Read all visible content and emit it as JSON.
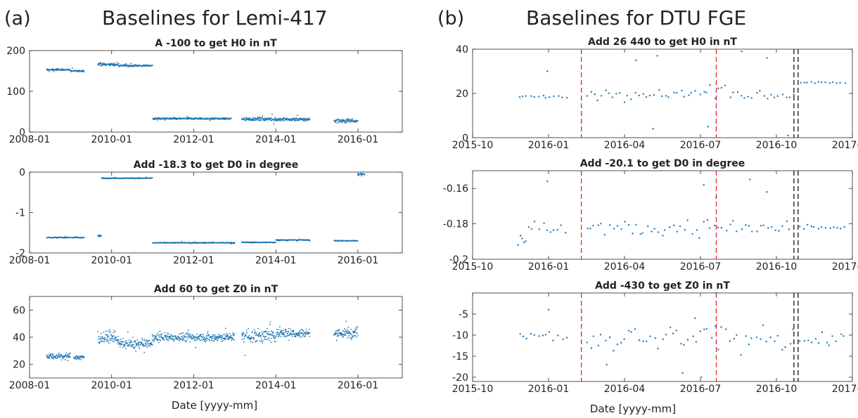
{
  "colors": {
    "series": "#1f77b4",
    "red_line": "#e8222a",
    "black_line": "#111111",
    "axis": "#262626"
  },
  "left": {
    "tag": "(a)",
    "title": "Baselines for Lemi-417",
    "xlabel": "Date [yyyy-mm]",
    "xticks": [
      "2008-01",
      "2010-01",
      "2012-01",
      "2014-01",
      "2016-01"
    ]
  },
  "right": {
    "tag": "(b)",
    "title": "Baselines for DTU FGE",
    "xlabel": "Date [yyyy-mm]",
    "xticks": [
      "2015-10",
      "2016-01",
      "2016-04",
      "2016-07",
      "2016-10",
      "2017-01"
    ]
  },
  "chart_data": [
    {
      "type": "scatter",
      "title": "A -100 to get H0 in nT",
      "xlabel": "",
      "ylabel": "",
      "x_type": "date",
      "xlim": [
        "2008-01",
        "2011-01"
      ],
      "xticks": [
        "2008-01",
        "2010-01",
        "2012-01",
        "2014-01",
        "2016-01"
      ],
      "ylim": [
        0,
        200
      ],
      "yticks": [
        "0",
        "100",
        "200"
      ],
      "grid": false,
      "segments": [
        {
          "start": "2008-06",
          "end": "2009-01",
          "y": 153,
          "noise": 2
        },
        {
          "start": "2009-01",
          "end": "2009-05",
          "y": 150,
          "noise": 2
        },
        {
          "start": "2009-09",
          "end": "2010-03",
          "y": 166,
          "noise": 3
        },
        {
          "start": "2010-03",
          "end": "2011-01",
          "y": 163,
          "noise": 2
        },
        {
          "start": "2011-01",
          "end": "2012-12",
          "y": 33,
          "noise": 2
        },
        {
          "start": "2013-03",
          "end": "2014-01",
          "y": 32,
          "noise": 4
        },
        {
          "start": "2014-01",
          "end": "2014-11",
          "y": 31,
          "noise": 4
        },
        {
          "start": "2015-06",
          "end": "2016-01",
          "y": 28,
          "noise": 5
        }
      ]
    },
    {
      "type": "scatter",
      "title": "Add -18.3 to get D0 in degree",
      "xlabel": "",
      "ylabel": "",
      "x_type": "date",
      "xlim": [
        "2008-01",
        "2017-01"
      ],
      "xticks": [
        "2008-01",
        "2010-01",
        "2012-01",
        "2014-01",
        "2016-01"
      ],
      "ylim": [
        -2,
        0
      ],
      "yticks": [
        "-2",
        "-1",
        "0"
      ],
      "grid": false,
      "segments": [
        {
          "start": "2008-06",
          "end": "2009-05",
          "y": -1.62,
          "noise": 0.01
        },
        {
          "start": "2009-09",
          "end": "2009-10",
          "y": -1.58,
          "noise": 0.02
        },
        {
          "start": "2009-10",
          "end": "2011-01",
          "y": -0.15,
          "noise": 0.01
        },
        {
          "start": "2011-01",
          "end": "2013-01",
          "y": -1.75,
          "noise": 0.01
        },
        {
          "start": "2013-03",
          "end": "2014-01",
          "y": -1.74,
          "noise": 0.01
        },
        {
          "start": "2014-01",
          "end": "2014-11",
          "y": -1.68,
          "noise": 0.01
        },
        {
          "start": "2015-06",
          "end": "2016-01",
          "y": -1.7,
          "noise": 0.01
        },
        {
          "start": "2016-01",
          "end": "2016-03",
          "y": -0.05,
          "noise": 0.03
        }
      ]
    },
    {
      "type": "scatter",
      "title": "Add 60 to get Z0 in nT",
      "xlabel": "Date [yyyy-mm]",
      "ylabel": "",
      "x_type": "date",
      "xlim": [
        "2008-01",
        "2017-01"
      ],
      "xticks": [
        "2008-01",
        "2010-01",
        "2012-01",
        "2014-01",
        "2016-01"
      ],
      "ylim": [
        10,
        70
      ],
      "yticks": [
        "20",
        "40",
        "60"
      ],
      "grid": false,
      "segments": [
        {
          "start": "2008-06",
          "end": "2009-01",
          "y": 26,
          "noise": 2
        },
        {
          "start": "2009-02",
          "end": "2009-05",
          "y": 25,
          "noise": 2
        },
        {
          "start": "2009-09",
          "end": "2010-03",
          "y": 40,
          "noise": 4
        },
        {
          "start": "2010-03",
          "end": "2011-01",
          "y": 35,
          "noise": 3
        },
        {
          "start": "2011-01",
          "end": "2013-01",
          "y": 40,
          "noise": 3
        },
        {
          "start": "2013-03",
          "end": "2014-01",
          "y": 41,
          "noise": 5
        },
        {
          "start": "2014-01",
          "end": "2014-11",
          "y": 43,
          "noise": 3
        },
        {
          "start": "2015-06",
          "end": "2016-01",
          "y": 43,
          "noise": 4
        }
      ]
    },
    {
      "type": "scatter",
      "title": "Add 26 440 to get H0 in nT",
      "xlabel": "",
      "ylabel": "",
      "x_type": "date",
      "xlim": [
        "2015-10",
        "2017-01"
      ],
      "xticks": [
        "2015-10",
        "2016-01",
        "2016-04",
        "2016-07",
        "2016-10",
        "2017-01"
      ],
      "ylim": [
        0,
        40
      ],
      "yticks": [
        "0",
        "20",
        "40"
      ],
      "grid": false,
      "vlines": [
        {
          "x": "2016-02-10",
          "color": "red"
        },
        {
          "x": "2016-07-20",
          "color": "red"
        },
        {
          "x": "2016-10-22",
          "color": "black"
        },
        {
          "x": "2016-10-27",
          "color": "black"
        }
      ],
      "segments": [
        {
          "start": "2015-11-25",
          "end": "2016-01-25",
          "y": 18.5,
          "noise": 0.6
        },
        {
          "start": "2016-02-15",
          "end": "2016-10-25",
          "y": 20,
          "noise": 2.5
        },
        {
          "start": "2016-10-28",
          "end": "2016-12-25",
          "y": 25,
          "noise": 0.4
        }
      ],
      "outliers": [
        [
          "2015-12-30",
          30
        ],
        [
          "2016-04-15",
          35
        ],
        [
          "2016-05-10",
          37
        ],
        [
          "2016-08-20",
          39
        ],
        [
          "2016-09-20",
          36
        ],
        [
          "2016-07-10",
          5
        ],
        [
          "2016-10-15",
          1
        ],
        [
          "2016-05-05",
          4
        ]
      ]
    },
    {
      "type": "scatter",
      "title": "Add -20.1 to get D0 in degree",
      "xlabel": "",
      "ylabel": "",
      "x_type": "date",
      "xlim": [
        "2015-10",
        "2017-01"
      ],
      "xticks": [
        "2015-10",
        "2016-01",
        "2016-04",
        "2016-07",
        "2016-10",
        "2017-01"
      ],
      "ylim": [
        -0.2,
        -0.15
      ],
      "yticks": [
        "-0.2",
        "-0.18",
        "-0.16"
      ],
      "grid": false,
      "vlines": [
        {
          "x": "2016-02-10",
          "color": "red"
        },
        {
          "x": "2016-07-20",
          "color": "red"
        },
        {
          "x": "2016-10-22",
          "color": "black"
        },
        {
          "x": "2016-10-27",
          "color": "black"
        }
      ],
      "segments": [
        {
          "start": "2015-11-25",
          "end": "2015-12-05",
          "y": -0.19,
          "noise": 0.004
        },
        {
          "start": "2015-12-05",
          "end": "2016-01-25",
          "y": -0.182,
          "noise": 0.004
        },
        {
          "start": "2016-02-15",
          "end": "2016-10-25",
          "y": -0.182,
          "noise": 0.004
        },
        {
          "start": "2016-10-28",
          "end": "2016-12-25",
          "y": -0.182,
          "noise": 0.002
        }
      ],
      "outliers": [
        [
          "2015-12-30",
          -0.156
        ],
        [
          "2016-07-20",
          -0.165
        ],
        [
          "2016-08-30",
          -0.155
        ],
        [
          "2016-09-20",
          -0.162
        ],
        [
          "2016-07-05",
          -0.158
        ]
      ]
    },
    {
      "type": "scatter",
      "title": "Add -430 to get Z0 in nT",
      "xlabel": "Date [yyyy-mm]",
      "ylabel": "",
      "x_type": "date",
      "xlim": [
        "2015-10",
        "2017-01"
      ],
      "xticks": [
        "2015-10",
        "2016-01",
        "2016-04",
        "2016-07",
        "2016-10",
        "2017-01"
      ],
      "ylim": [
        -21,
        0
      ],
      "yticks": [
        "-20",
        "-15",
        "-10",
        "-5"
      ],
      "grid": false,
      "vlines": [
        {
          "x": "2016-02-10",
          "color": "red"
        },
        {
          "x": "2016-07-20",
          "color": "red"
        },
        {
          "x": "2016-10-22",
          "color": "black"
        },
        {
          "x": "2016-10-27",
          "color": "black"
        }
      ],
      "segments": [
        {
          "start": "2015-11-25",
          "end": "2016-01-25",
          "y": -10.5,
          "noise": 1
        },
        {
          "start": "2016-02-15",
          "end": "2016-10-25",
          "y": -11,
          "noise": 3
        },
        {
          "start": "2016-10-28",
          "end": "2016-12-25",
          "y": -11,
          "noise": 1.5
        }
      ],
      "outliers": [
        [
          "2016-01-01",
          -4
        ],
        [
          "2016-03-10",
          -17
        ],
        [
          "2016-06-25",
          -6
        ],
        [
          "2016-07-20",
          0
        ],
        [
          "2016-07-02",
          -20
        ],
        [
          "2016-06-10",
          -19
        ]
      ]
    }
  ]
}
